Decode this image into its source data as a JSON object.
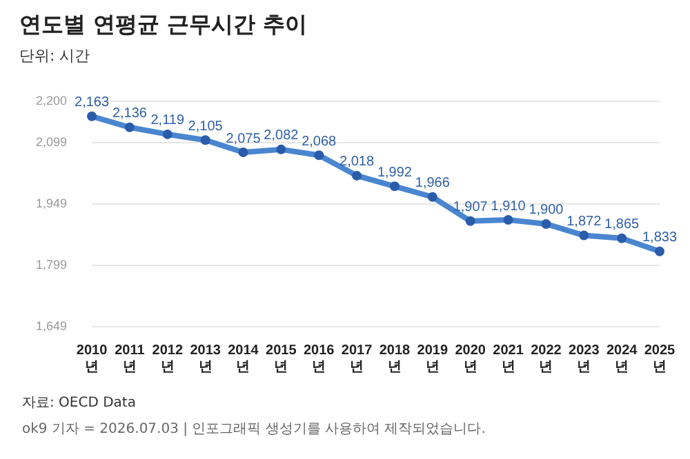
{
  "chart_data": {
    "type": "line",
    "title": "연도별 연평균 근무시간 추이",
    "subtitle": "단위: 시간",
    "categories": [
      "2010 년",
      "2011 년",
      "2012 년",
      "2013 년",
      "2014 년",
      "2015 년",
      "2016 년",
      "2017 년",
      "2018 년",
      "2019 년",
      "2020 년",
      "2021 년",
      "2022 년",
      "2023 년",
      "2024 년",
      "2025 년"
    ],
    "series": [
      {
        "color": "#4a86d0",
        "values": [
          2163,
          2136,
          2119,
          2105,
          2075,
          2082,
          2068,
          2018,
          1992,
          1966,
          1907,
          1910,
          1900,
          1872,
          1865,
          1833
        ],
        "value_labels": [
          "2,163",
          "2,136",
          "2,119",
          "2,105",
          "2,075",
          "2,082",
          "2,068",
          "2,018",
          "1,992",
          "1,966",
          "1,907",
          "1,910",
          "1,900",
          "1,872",
          "1,865",
          "1,833"
        ]
      }
    ],
    "ylim": [
      1649,
      2200
    ],
    "yticks": [
      {
        "value": 1649,
        "label": "1,649"
      },
      {
        "value": 1799,
        "label": "1,799"
      },
      {
        "value": 1949,
        "label": "1,949"
      },
      {
        "value": 2099,
        "label": "2,099"
      },
      {
        "value": 2200,
        "label": "2,200"
      }
    ],
    "grid": "y",
    "legend": false,
    "marker": "circle",
    "line_style": "solid",
    "annotations": [
      "자료: OECD Data",
      "ok9 기자 = 2026.07.03 | 인포그래픽 생성기를 사용하여 제작되었습니다."
    ]
  }
}
